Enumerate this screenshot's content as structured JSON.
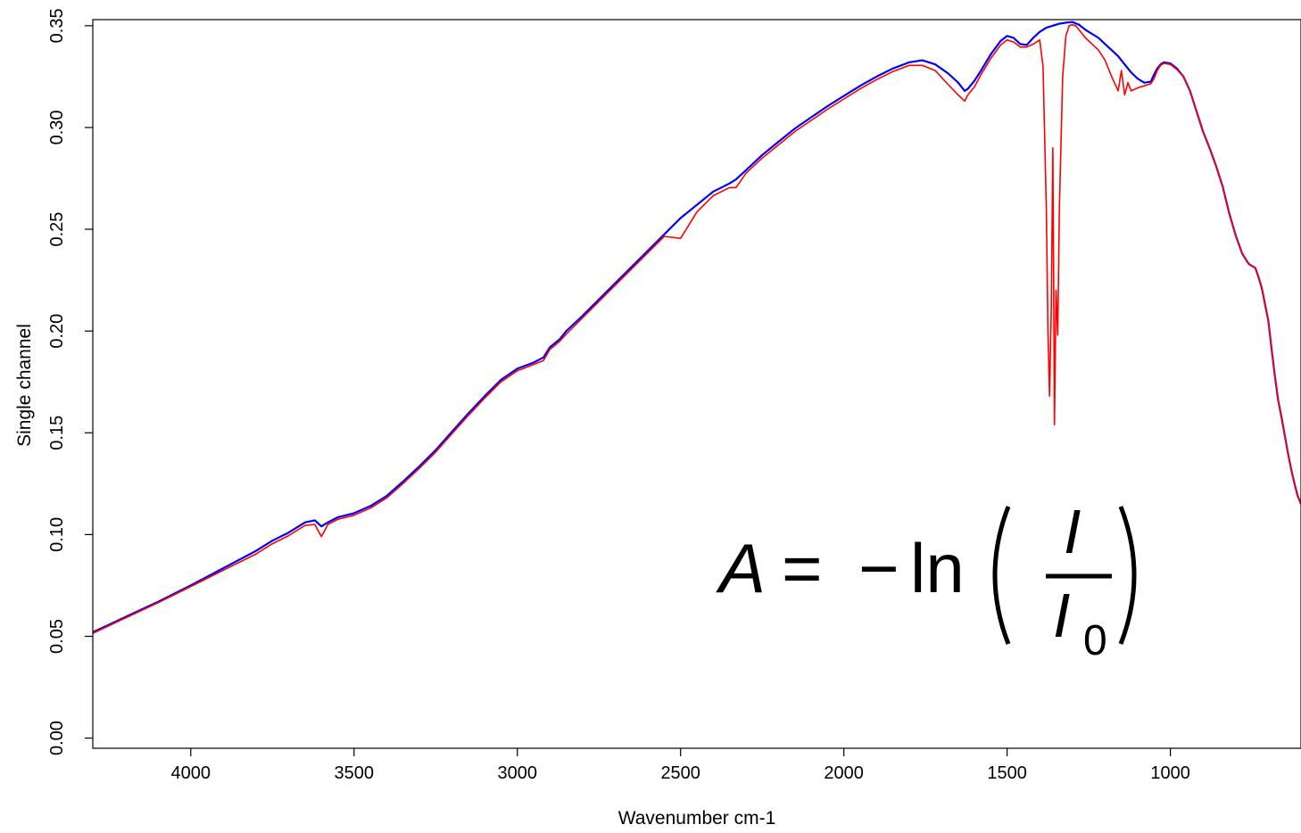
{
  "chart_data": {
    "type": "line",
    "title": "",
    "xlabel": "Wavenumber cm-1",
    "ylabel": "Single channel",
    "xlim": [
      4300,
      600
    ],
    "ylim": [
      -0.005,
      0.353
    ],
    "x_reversed": true,
    "grid": false,
    "legend": "none",
    "x_ticks": [
      4000,
      3500,
      3000,
      2500,
      2000,
      1500,
      1000
    ],
    "x_tick_labels": [
      "4000",
      "3500",
      "3000",
      "2500",
      "2000",
      "1500",
      "1000"
    ],
    "y_ticks": [
      0.0,
      0.05,
      0.1,
      0.15,
      0.2,
      0.25,
      0.3,
      0.35
    ],
    "y_tick_labels": [
      "0.00",
      "0.05",
      "0.10",
      "0.15",
      "0.20",
      "0.25",
      "0.30",
      "0.35"
    ],
    "annotation": {
      "lhs": "A",
      "equals": "=",
      "minus": "−",
      "func": "ln",
      "numerator": "I",
      "denominator": "I",
      "subscript": "0"
    },
    "series": [
      {
        "color": "#0000ff",
        "x": [
          4300,
          4200,
          4100,
          4000,
          3900,
          3800,
          3750,
          3700,
          3650,
          3620,
          3600,
          3580,
          3550,
          3500,
          3450,
          3400,
          3350,
          3300,
          3250,
          3200,
          3150,
          3100,
          3050,
          3000,
          2950,
          2920,
          2900,
          2870,
          2850,
          2800,
          2750,
          2700,
          2650,
          2600,
          2550,
          2500,
          2450,
          2400,
          2350,
          2330,
          2300,
          2250,
          2200,
          2150,
          2100,
          2050,
          2000,
          1950,
          1900,
          1850,
          1800,
          1760,
          1720,
          1680,
          1650,
          1630,
          1620,
          1600,
          1580,
          1550,
          1520,
          1500,
          1480,
          1460,
          1440,
          1420,
          1400,
          1380,
          1360,
          1340,
          1320,
          1300,
          1280,
          1260,
          1240,
          1220,
          1200,
          1180,
          1160,
          1140,
          1120,
          1100,
          1080,
          1060,
          1050,
          1040,
          1030,
          1020,
          1000,
          980,
          960,
          940,
          920,
          900,
          880,
          860,
          840,
          820,
          800,
          780,
          760,
          740,
          730,
          720,
          700,
          690,
          680,
          670,
          660,
          650,
          640,
          630,
          620,
          610,
          600
        ],
        "y": [
          0.052,
          0.0595,
          0.067,
          0.075,
          0.0835,
          0.092,
          0.097,
          0.101,
          0.106,
          0.107,
          0.104,
          0.106,
          0.1085,
          0.1105,
          0.114,
          0.119,
          0.126,
          0.1335,
          0.1415,
          0.1505,
          0.1595,
          0.168,
          0.176,
          0.1815,
          0.1845,
          0.187,
          0.192,
          0.196,
          0.2,
          0.2075,
          0.2155,
          0.2235,
          0.2315,
          0.2395,
          0.2475,
          0.2555,
          0.262,
          0.2685,
          0.2725,
          0.2745,
          0.279,
          0.2865,
          0.293,
          0.2995,
          0.305,
          0.3105,
          0.3155,
          0.3205,
          0.325,
          0.329,
          0.332,
          0.333,
          0.331,
          0.3265,
          0.322,
          0.318,
          0.319,
          0.323,
          0.328,
          0.336,
          0.3425,
          0.345,
          0.344,
          0.341,
          0.3405,
          0.344,
          0.347,
          0.349,
          0.35,
          0.351,
          0.3515,
          0.3518,
          0.3505,
          0.348,
          0.346,
          0.344,
          0.341,
          0.338,
          0.335,
          0.331,
          0.327,
          0.324,
          0.322,
          0.3225,
          0.326,
          0.329,
          0.331,
          0.332,
          0.3315,
          0.329,
          0.325,
          0.318,
          0.308,
          0.298,
          0.29,
          0.281,
          0.271,
          0.258,
          0.247,
          0.238,
          0.233,
          0.231,
          0.2265,
          0.221,
          0.205,
          0.191,
          0.178,
          0.166,
          0.158,
          0.149,
          0.14,
          0.132,
          0.125,
          0.119,
          0.115
        ]
      },
      {
        "color": "#ff0000",
        "x": [
          4300,
          4200,
          4100,
          4000,
          3900,
          3800,
          3750,
          3700,
          3650,
          3620,
          3600,
          3580,
          3550,
          3500,
          3450,
          3400,
          3350,
          3300,
          3250,
          3200,
          3150,
          3100,
          3050,
          3000,
          2950,
          2920,
          2900,
          2870,
          2850,
          2800,
          2750,
          2700,
          2650,
          2600,
          2550,
          2500,
          2450,
          2400,
          2350,
          2330,
          2300,
          2250,
          2200,
          2150,
          2100,
          2050,
          2000,
          1950,
          1900,
          1850,
          1800,
          1760,
          1720,
          1680,
          1650,
          1630,
          1620,
          1600,
          1580,
          1550,
          1520,
          1500,
          1480,
          1460,
          1440,
          1420,
          1400,
          1390,
          1380,
          1375,
          1370,
          1365,
          1360,
          1355,
          1350,
          1345,
          1340,
          1330,
          1320,
          1310,
          1300,
          1290,
          1280,
          1260,
          1240,
          1220,
          1200,
          1180,
          1160,
          1150,
          1140,
          1130,
          1120,
          1100,
          1080,
          1060,
          1050,
          1040,
          1030,
          1020,
          1000,
          980,
          960,
          940,
          920,
          900,
          880,
          860,
          840,
          820,
          800,
          780,
          760,
          740,
          730,
          720,
          700,
          690,
          680,
          670,
          660,
          650,
          640,
          630,
          620,
          610,
          600
        ],
        "y": [
          0.0515,
          0.059,
          0.0665,
          0.0745,
          0.0825,
          0.0905,
          0.0955,
          0.0995,
          0.1045,
          0.105,
          0.099,
          0.105,
          0.1075,
          0.1095,
          0.113,
          0.118,
          0.125,
          0.1325,
          0.1405,
          0.1495,
          0.1585,
          0.167,
          0.175,
          0.1805,
          0.1835,
          0.1855,
          0.191,
          0.195,
          0.1985,
          0.2065,
          0.2145,
          0.2225,
          0.2305,
          0.2385,
          0.2465,
          0.2455,
          0.2585,
          0.2665,
          0.2705,
          0.2705,
          0.2775,
          0.285,
          0.2915,
          0.298,
          0.3035,
          0.309,
          0.314,
          0.319,
          0.3235,
          0.3275,
          0.3305,
          0.3305,
          0.328,
          0.321,
          0.316,
          0.313,
          0.316,
          0.32,
          0.326,
          0.334,
          0.3405,
          0.343,
          0.342,
          0.3395,
          0.3395,
          0.341,
          0.343,
          0.33,
          0.26,
          0.2,
          0.168,
          0.21,
          0.29,
          0.154,
          0.22,
          0.198,
          0.26,
          0.325,
          0.345,
          0.35,
          0.3505,
          0.35,
          0.348,
          0.344,
          0.341,
          0.338,
          0.333,
          0.325,
          0.318,
          0.328,
          0.316,
          0.322,
          0.318,
          0.3195,
          0.3205,
          0.3215,
          0.324,
          0.328,
          0.3305,
          0.3315,
          0.331,
          0.3285,
          0.325,
          0.318,
          0.308,
          0.298,
          0.29,
          0.281,
          0.271,
          0.258,
          0.247,
          0.238,
          0.233,
          0.231,
          0.2265,
          0.221,
          0.205,
          0.191,
          0.178,
          0.166,
          0.158,
          0.149,
          0.14,
          0.132,
          0.125,
          0.119,
          0.115
        ]
      }
    ]
  }
}
